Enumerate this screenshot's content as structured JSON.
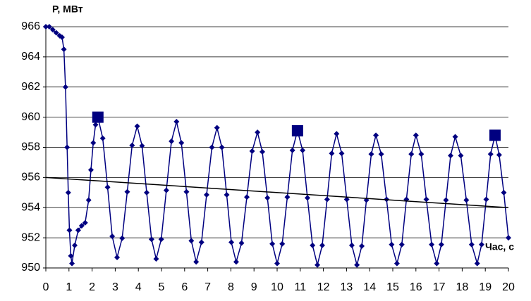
{
  "chart_data": {
    "type": "line",
    "y_label": "Р, МВт",
    "x_label": "Час, с",
    "xlim": [
      0,
      20
    ],
    "ylim": [
      950,
      966
    ],
    "xticks": [
      0,
      1,
      2,
      3,
      4,
      5,
      6,
      7,
      8,
      9,
      10,
      11,
      12,
      13,
      14,
      15,
      16,
      17,
      18,
      19,
      20
    ],
    "yticks": [
      950,
      952,
      954,
      956,
      958,
      960,
      962,
      964,
      966
    ],
    "grid": true,
    "series": [
      {
        "color": "#000080",
        "marker": "diamond",
        "line": true,
        "x": [
          0,
          0.15,
          0.3,
          0.45,
          0.6,
          0.7,
          0.78,
          0.85,
          0.92,
          0.97,
          1.02,
          1.08,
          1.13,
          1.25,
          1.4,
          1.55,
          1.7,
          1.85,
          1.95,
          2.05,
          2.15,
          2.25,
          2.46,
          2.67,
          2.87,
          3.08,
          3.3,
          3.52,
          3.73,
          3.95,
          4.16,
          4.36,
          4.57,
          4.77,
          4.99,
          5.21,
          5.43,
          5.65,
          5.86,
          6.08,
          6.29,
          6.5,
          6.73,
          6.95,
          7.18,
          7.4,
          7.61,
          7.82,
          8.02,
          8.23,
          8.46,
          8.69,
          8.92,
          9.15,
          9.36,
          9.58,
          9.79,
          10.0,
          10.22,
          10.44,
          10.66,
          10.88,
          11.1,
          11.31,
          11.53,
          11.74,
          11.95,
          12.16,
          12.36,
          12.57,
          12.79,
          13.01,
          13.23,
          13.45,
          13.66,
          13.86,
          14.07,
          14.27,
          14.5,
          14.73,
          14.95,
          15.18,
          15.39,
          15.59,
          15.8,
          16.0,
          16.23,
          16.45,
          16.68,
          16.9,
          17.1,
          17.3,
          17.5,
          17.7,
          17.94,
          18.18,
          18.41,
          18.65,
          18.84,
          19.04,
          19.23,
          19.42,
          19.6,
          19.8,
          20
        ],
        "values": [
          966,
          966,
          965.8,
          965.6,
          965.4,
          965.3,
          964.5,
          962,
          958,
          955,
          952.5,
          950.8,
          950.3,
          951.5,
          952.5,
          952.8,
          953,
          954.5,
          956.5,
          958.3,
          959.5,
          960,
          958.6,
          955.35,
          952.1,
          950.7,
          951.97,
          955.05,
          958.13,
          959.4,
          958.1,
          955.0,
          951.9,
          950.6,
          951.9,
          955.15,
          958.4,
          959.7,
          958.3,
          955.05,
          951.8,
          950.4,
          951.7,
          954.85,
          958.0,
          959.3,
          958.0,
          954.85,
          951.7,
          950.4,
          951.65,
          954.7,
          957.75,
          959.0,
          957.7,
          954.65,
          951.6,
          950.3,
          951.6,
          954.7,
          957.8,
          959.1,
          957.8,
          954.65,
          951.5,
          950.2,
          951.5,
          954.55,
          957.6,
          958.9,
          957.6,
          954.55,
          951.5,
          950.2,
          951.45,
          954.5,
          957.55,
          958.8,
          957.55,
          954.55,
          951.55,
          950.3,
          951.55,
          954.55,
          957.55,
          958.8,
          957.55,
          954.55,
          951.55,
          950.3,
          951.55,
          954.5,
          957.45,
          958.7,
          957.45,
          954.5,
          951.55,
          950.3,
          951.55,
          954.55,
          957.55,
          958.8,
          957.5,
          955,
          952
        ]
      },
      {
        "color": "#000080",
        "marker": "square",
        "line": false,
        "x": [
          2.25,
          10.88,
          19.42
        ],
        "values": [
          960,
          959.1,
          958.8
        ]
      },
      {
        "color": "#000000",
        "marker": "none",
        "line": true,
        "x": [
          0,
          20
        ],
        "values": [
          956,
          954
        ]
      }
    ]
  }
}
